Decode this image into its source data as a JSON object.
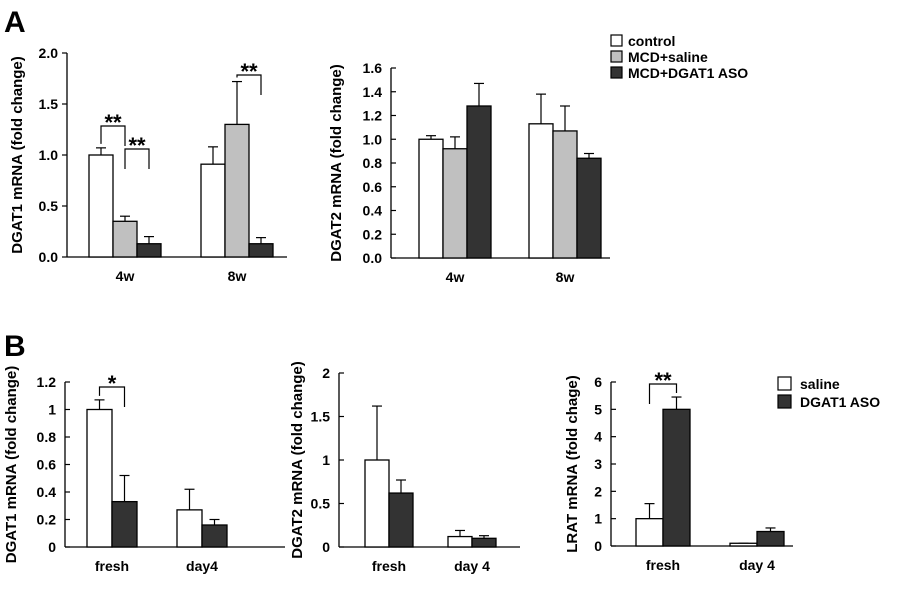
{
  "panel_labels": [
    "A",
    "B"
  ],
  "legends": {
    "A": {
      "items": [
        {
          "label": "control",
          "color": "#ffffff"
        },
        {
          "label": "MCD+saline",
          "color": "#c0c0c0"
        },
        {
          "label": "MCD+DGAT1 ASO",
          "color": "#333333"
        }
      ]
    },
    "B": {
      "items": [
        {
          "label": "saline",
          "color": "#ffffff"
        },
        {
          "label": "DGAT1 ASO",
          "color": "#333333"
        }
      ]
    }
  },
  "chart_data": [
    {
      "type": "bar",
      "panel": "A",
      "ylabel": "DGAT1 mRNA (fold change)",
      "categories": [
        "4w",
        "8w"
      ],
      "ylim": [
        0,
        2.0
      ],
      "yticks": [
        "0.0",
        "0.5",
        "1.0",
        "1.5",
        "2.0"
      ],
      "series": [
        {
          "name": "control",
          "values": [
            1.0,
            0.91
          ],
          "errors": [
            0.07,
            0.17
          ]
        },
        {
          "name": "MCD+saline",
          "values": [
            0.35,
            1.3
          ],
          "errors": [
            0.05,
            0.42
          ]
        },
        {
          "name": "MCD+DGAT1 ASO",
          "values": [
            0.13,
            0.13
          ],
          "errors": [
            0.07,
            0.06
          ]
        }
      ],
      "annotations": [
        "**",
        "**",
        "**"
      ]
    },
    {
      "type": "bar",
      "panel": "A",
      "ylabel": "DGAT2 mRNA (fold change)",
      "categories": [
        "4w",
        "8w"
      ],
      "ylim": [
        0,
        1.6
      ],
      "yticks": [
        "0.0",
        "0.2",
        "0.4",
        "0.6",
        "0.8",
        "1.0",
        "1.2",
        "1.4",
        "1.6"
      ],
      "series": [
        {
          "name": "control",
          "values": [
            1.0,
            1.13
          ],
          "errors": [
            0.03,
            0.25
          ]
        },
        {
          "name": "MCD+saline",
          "values": [
            0.92,
            1.07
          ],
          "errors": [
            0.1,
            0.21
          ]
        },
        {
          "name": "MCD+DGAT1 ASO",
          "values": [
            1.28,
            0.84
          ],
          "errors": [
            0.19,
            0.04
          ]
        }
      ]
    },
    {
      "type": "bar",
      "panel": "B",
      "ylabel": "DGAT1 mRNA (fold change)",
      "categories": [
        "fresh",
        "day4"
      ],
      "ylim": [
        0,
        1.2
      ],
      "yticks": [
        "0",
        "0.2",
        "0.4",
        "0.6",
        "0.8",
        "1",
        "1.2"
      ],
      "series": [
        {
          "name": "saline",
          "values": [
            1.0,
            0.27
          ],
          "errors": [
            0.07,
            0.15
          ]
        },
        {
          "name": "DGAT1 ASO",
          "values": [
            0.33,
            0.16
          ],
          "errors": [
            0.19,
            0.04
          ]
        }
      ],
      "annotations": [
        "*"
      ]
    },
    {
      "type": "bar",
      "panel": "B",
      "ylabel": "DGAT2 mRNA (fold change)",
      "categories": [
        "fresh",
        "day 4"
      ],
      "ylim": [
        0,
        2
      ],
      "yticks": [
        "0",
        "0.5",
        "1",
        "1.5",
        "2"
      ],
      "series": [
        {
          "name": "saline",
          "values": [
            1.0,
            0.12
          ],
          "errors": [
            0.62,
            0.07
          ]
        },
        {
          "name": "DGAT1 ASO",
          "values": [
            0.62,
            0.1
          ],
          "errors": [
            0.15,
            0.03
          ]
        }
      ]
    },
    {
      "type": "bar",
      "panel": "B",
      "ylabel": "LRAT mRNA (fold chage)",
      "categories": [
        "fresh",
        "day 4"
      ],
      "ylim": [
        0,
        6
      ],
      "yticks": [
        "0",
        "1",
        "2",
        "3",
        "4",
        "5",
        "6"
      ],
      "series": [
        {
          "name": "saline",
          "values": [
            1.0,
            0.1
          ],
          "errors": [
            0.55,
            0.0
          ]
        },
        {
          "name": "DGAT1 ASO",
          "values": [
            5.0,
            0.53
          ],
          "errors": [
            0.45,
            0.13
          ]
        }
      ],
      "annotations": [
        "**"
      ]
    }
  ]
}
